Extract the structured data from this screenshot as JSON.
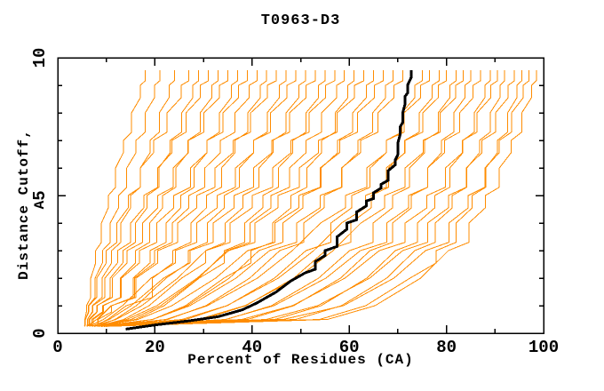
{
  "title": "T0963-D3",
  "axis_labels": {
    "x": "Percent of Residues (CA)",
    "y": "Distance Cutoff, A"
  },
  "colors": {
    "model_lines": "#FF8C00",
    "highlight_line": "#000000",
    "frame": "#000000",
    "background": "#FFFFFF"
  },
  "chart_data": {
    "type": "line",
    "title": "T0963-D3",
    "xlabel": "Percent of Residues (CA)",
    "ylabel": "Distance Cutoff, A",
    "xlim": [
      0,
      100
    ],
    "ylim": [
      0,
      10
    ],
    "grid": false,
    "legend_position": "none",
    "x_major_ticks": [
      0,
      20,
      40,
      60,
      80,
      100
    ],
    "x_minor_ticks": [
      10,
      30,
      50,
      70,
      90
    ],
    "y_major_ticks": [
      0,
      5,
      10
    ],
    "y_minor_ticks": [
      1,
      2,
      3,
      4,
      6,
      7,
      8,
      9
    ],
    "series_note": "model_series: one orange cumulative curve per model; x = percent of CA residues under each distance cutoff in y_levels (Angstroms). highlight_series: black curve.",
    "y_levels": [
      0.25,
      0.5,
      1,
      2,
      3,
      4,
      5,
      6,
      7,
      8,
      9,
      9.55
    ],
    "model_series": [
      [
        5.5,
        5.6,
        5.9,
        6.8,
        7.8,
        9.0,
        10.4,
        11.9,
        13.5,
        15.2,
        17.0,
        18.0
      ],
      [
        5.6,
        5.7,
        6.3,
        7.7,
        9.2,
        10.8,
        12.5,
        14.2,
        16.1,
        18.0,
        19.9,
        21.0
      ],
      [
        6.0,
        6.1,
        7.1,
        9.1,
        11.1,
        13.0,
        15.0,
        17.0,
        19.0,
        20.9,
        22.9,
        24.0
      ],
      [
        5.5,
        5.7,
        6.4,
        8.0,
        10.0,
        12.2,
        14.5,
        17.0,
        19.7,
        22.5,
        25.4,
        27.0
      ],
      [
        6.5,
        6.6,
        8.1,
        10.8,
        13.4,
        16.0,
        18.4,
        20.8,
        23.1,
        25.5,
        27.8,
        29.0
      ],
      [
        6.0,
        6.1,
        7.2,
        9.7,
        12.3,
        15.0,
        17.7,
        20.6,
        23.5,
        26.4,
        29.3,
        31.0
      ],
      [
        7.0,
        7.3,
        9.4,
        12.9,
        16.0,
        18.9,
        21.6,
        24.3,
        26.8,
        29.3,
        31.7,
        33.0
      ],
      [
        6.0,
        6.4,
        8.0,
        11.2,
        14.3,
        17.5,
        20.6,
        23.8,
        26.9,
        30.1,
        33.3,
        35.0
      ],
      [
        7.5,
        8.3,
        11.1,
        15.5,
        19.0,
        22.3,
        25.3,
        28.1,
        30.7,
        33.3,
        35.7,
        37.0
      ],
      [
        6.0,
        7.0,
        9.2,
        13.1,
        16.8,
        20.4,
        23.9,
        27.3,
        30.7,
        34.0,
        37.2,
        39.0
      ],
      [
        7.0,
        8.2,
        11.1,
        15.8,
        19.9,
        23.6,
        27.0,
        30.3,
        33.5,
        36.5,
        39.4,
        41.0
      ],
      [
        7.5,
        10.3,
        14.1,
        19.5,
        23.7,
        27.4,
        30.6,
        33.7,
        36.5,
        39.1,
        41.7,
        43.0
      ],
      [
        6.0,
        8.0,
        11.0,
        16.1,
        20.6,
        24.7,
        28.6,
        32.4,
        36.1,
        39.7,
        43.1,
        45.0
      ],
      [
        8.0,
        11.8,
        16.2,
        22.3,
        26.9,
        30.8,
        34.3,
        37.4,
        40.3,
        43.1,
        45.6,
        47.0
      ],
      [
        6.5,
        9.4,
        13.3,
        19.2,
        24.2,
        28.6,
        32.8,
        36.6,
        40.3,
        43.8,
        47.2,
        49.0
      ],
      [
        8.0,
        13.6,
        18.8,
        25.5,
        30.4,
        34.5,
        38.1,
        41.4,
        44.3,
        47.0,
        49.6,
        51.0
      ],
      [
        7.0,
        10.6,
        15.1,
        21.8,
        27.2,
        32.0,
        36.3,
        40.3,
        44.1,
        47.7,
        51.1,
        53.0
      ],
      [
        8.5,
        16.0,
        21.9,
        29.1,
        34.3,
        38.5,
        42.2,
        45.4,
        48.4,
        51.1,
        53.7,
        55.0
      ],
      [
        7.0,
        12.0,
        17.3,
        24.7,
        30.5,
        35.5,
        40.0,
        44.2,
        48.0,
        51.7,
        55.1,
        57.0
      ],
      [
        8.0,
        15.1,
        21.2,
        29.0,
        34.8,
        39.6,
        43.9,
        47.7,
        51.1,
        54.3,
        57.4,
        59.0
      ],
      [
        9.0,
        19.5,
        26.3,
        34.2,
        39.8,
        44.2,
        48.0,
        51.3,
        54.3,
        57.1,
        59.7,
        61.0
      ],
      [
        7.5,
        14.2,
        20.4,
        28.7,
        35.2,
        40.6,
        45.3,
        49.7,
        53.7,
        57.5,
        61.1,
        63.0
      ],
      [
        9.0,
        19.5,
        26.7,
        35.3,
        41.4,
        46.3,
        50.5,
        54.2,
        57.6,
        60.7,
        63.5,
        65.0
      ],
      [
        8.0,
        16.5,
        23.5,
        32.5,
        39.1,
        44.7,
        49.6,
        54.0,
        58.0,
        61.7,
        65.2,
        67.0
      ],
      [
        9.5,
        22.6,
        30.5,
        39.5,
        45.7,
        50.6,
        54.8,
        58.5,
        61.8,
        64.8,
        67.5,
        69.0
      ],
      [
        8.0,
        19.5,
        27.2,
        36.7,
        43.6,
        49.2,
        54.0,
        58.4,
        62.3,
        65.9,
        69.2,
        71.0
      ],
      [
        10.0,
        26.4,
        34.9,
        44.6,
        51.1,
        56.2,
        60.5,
        64.3,
        67.6,
        70.8,
        73.5,
        75.0
      ],
      [
        8.5,
        22.3,
        30.8,
        41.1,
        48.3,
        54.1,
        59.2,
        63.6,
        67.6,
        71.3,
        74.7,
        76.5
      ],
      [
        10.0,
        29.7,
        38.7,
        48.6,
        55.1,
        60.3,
        64.5,
        68.1,
        71.4,
        74.4,
        77.1,
        78.5
      ],
      [
        9.0,
        25.6,
        34.8,
        45.4,
        52.7,
        58.4,
        63.3,
        67.6,
        71.5,
        75.1,
        78.3,
        80.0
      ],
      [
        10.5,
        34.7,
        44.0,
        53.7,
        60.1,
        64.9,
        68.9,
        72.4,
        75.5,
        78.3,
        80.7,
        82.0
      ],
      [
        9.0,
        28.9,
        38.5,
        49.3,
        56.7,
        62.4,
        67.3,
        71.5,
        75.2,
        78.7,
        81.9,
        83.5
      ],
      [
        10.0,
        39.1,
        48.6,
        58.2,
        64.3,
        68.9,
        72.8,
        76.1,
        79.0,
        81.5,
        83.8,
        85.0
      ],
      [
        9.5,
        34.5,
        44.5,
        55.2,
        62.3,
        67.7,
        72.2,
        76.1,
        79.6,
        82.7,
        85.5,
        87.0
      ],
      [
        10.0,
        44.7,
        54.2,
        63.6,
        69.5,
        74.0,
        77.6,
        80.7,
        83.4,
        85.7,
        87.9,
        89.0
      ],
      [
        10.0,
        37.9,
        48.3,
        59.1,
        66.2,
        71.5,
        76.0,
        79.8,
        83.3,
        86.3,
        89.1,
        90.5
      ],
      [
        9.5,
        49.0,
        58.4,
        67.7,
        73.5,
        77.7,
        81.2,
        84.2,
        86.8,
        89.0,
        91.0,
        92.0
      ],
      [
        10.0,
        42.9,
        53.5,
        64.2,
        71.0,
        76.1,
        80.4,
        84.1,
        87.3,
        90.1,
        92.7,
        94.0
      ],
      [
        10.0,
        53.9,
        63.4,
        72.5,
        77.9,
        82.0,
        85.3,
        88.1,
        90.5,
        92.6,
        94.5,
        95.5
      ],
      [
        9.0,
        46.4,
        58.8,
        69.2,
        75.7,
        80.5,
        84.5,
        87.9,
        90.9,
        93.4,
        95.8,
        97.0
      ],
      [
        10.0,
        55.5,
        65.3,
        74.7,
        80.4,
        84.6,
        88.0,
        90.9,
        93.3,
        95.5,
        97.5,
        98.5
      ]
    ],
    "highlight_series": {
      "x": [
        14.0,
        20.0,
        27.0,
        33.0,
        38.0,
        41.0,
        45.0,
        48.0,
        51.0,
        53.0,
        55.0,
        57.5,
        59.5,
        61.5,
        63.5,
        65.0,
        66.5,
        68.0,
        69.5,
        70.0,
        70.5,
        71.0,
        71.5,
        72.0,
        72.8
      ],
      "y": [
        0.15,
        0.3,
        0.45,
        0.6,
        0.85,
        1.1,
        1.5,
        1.9,
        2.2,
        2.6,
        3.0,
        3.5,
        4.0,
        4.4,
        4.8,
        5.1,
        5.4,
        5.9,
        6.3,
        6.9,
        7.5,
        8.0,
        8.6,
        9.0,
        9.55
      ]
    }
  }
}
